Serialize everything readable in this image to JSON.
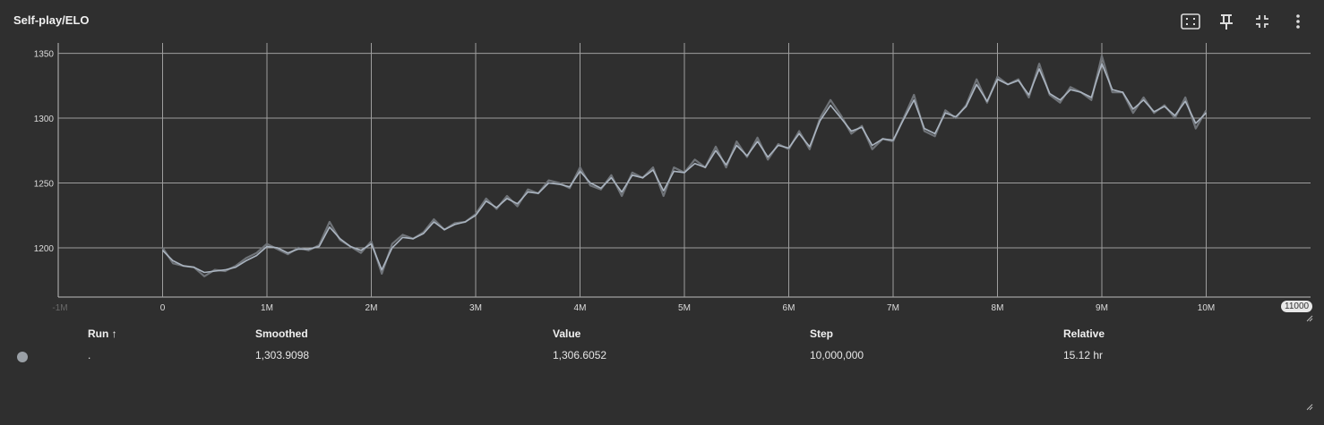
{
  "card": {
    "title": "Self-play/ELO",
    "toolbar": [
      {
        "name": "fit-domain-icon"
      },
      {
        "name": "pin-icon"
      },
      {
        "name": "collapse-icon"
      },
      {
        "name": "more-vert-icon"
      }
    ]
  },
  "chart_data": {
    "type": "line",
    "title": "Self-play/ELO",
    "xlabel": "",
    "ylabel": "",
    "xlim": [
      -1000000,
      11000000
    ],
    "ylim": [
      1162,
      1358
    ],
    "x_ticks": [
      0,
      1000000,
      2000000,
      3000000,
      4000000,
      5000000,
      6000000,
      7000000,
      8000000,
      9000000,
      10000000
    ],
    "x_tick_labels": [
      "0",
      "1M",
      "2M",
      "3M",
      "4M",
      "5M",
      "6M",
      "7M",
      "8M",
      "9M",
      "10M"
    ],
    "x_edge_labels": {
      "left": "-1M",
      "right": "11000"
    },
    "y_ticks": [
      1200,
      1250,
      1300,
      1350
    ],
    "y_tick_labels": [
      "1200",
      "1250",
      "1300",
      "1350"
    ],
    "grid": true,
    "series_colors": {
      "raw": "#6f7378",
      "smoothed": "#aab4c0"
    },
    "series": [
      {
        "name": ".",
        "x": [
          0,
          100000,
          200000,
          300000,
          400000,
          500000,
          600000,
          700000,
          800000,
          900000,
          1000000,
          1100000,
          1200000,
          1300000,
          1400000,
          1500000,
          1600000,
          1700000,
          1800000,
          1900000,
          2000000,
          2100000,
          2200000,
          2300000,
          2400000,
          2500000,
          2600000,
          2700000,
          2800000,
          2900000,
          3000000,
          3100000,
          3200000,
          3300000,
          3400000,
          3500000,
          3600000,
          3700000,
          3800000,
          3900000,
          4000000,
          4100000,
          4200000,
          4300000,
          4400000,
          4500000,
          4600000,
          4700000,
          4800000,
          4900000,
          5000000,
          5100000,
          5200000,
          5300000,
          5400000,
          5500000,
          5600000,
          5700000,
          5800000,
          5900000,
          6000000,
          6100000,
          6200000,
          6300000,
          6400000,
          6500000,
          6600000,
          6700000,
          6800000,
          6900000,
          7000000,
          7100000,
          7200000,
          7300000,
          7400000,
          7500000,
          7600000,
          7700000,
          7800000,
          7900000,
          8000000,
          8100000,
          8200000,
          8300000,
          8400000,
          8500000,
          8600000,
          8700000,
          8800000,
          8900000,
          9000000,
          9100000,
          9200000,
          9300000,
          9400000,
          9500000,
          9600000,
          9700000,
          9800000,
          9900000,
          10000000
        ],
        "raw": [
          1200,
          1188,
          1186,
          1185,
          1178,
          1183,
          1182,
          1186,
          1192,
          1196,
          1203,
          1199,
          1195,
          1200,
          1198,
          1202,
          1220,
          1206,
          1201,
          1196,
          1205,
          1180,
          1203,
          1210,
          1207,
          1212,
          1222,
          1214,
          1219,
          1220,
          1226,
          1238,
          1230,
          1240,
          1232,
          1245,
          1242,
          1252,
          1250,
          1246,
          1262,
          1248,
          1245,
          1256,
          1240,
          1258,
          1254,
          1262,
          1240,
          1262,
          1258,
          1268,
          1262,
          1278,
          1262,
          1282,
          1270,
          1285,
          1268,
          1280,
          1276,
          1290,
          1276,
          1300,
          1314,
          1302,
          1288,
          1294,
          1276,
          1284,
          1282,
          1300,
          1318,
          1290,
          1286,
          1306,
          1300,
          1310,
          1330,
          1312,
          1332,
          1326,
          1330,
          1316,
          1342,
          1318,
          1312,
          1324,
          1320,
          1314,
          1348,
          1320,
          1320,
          1304,
          1316,
          1304,
          1310,
          1300,
          1316,
          1292,
          1306
        ],
        "smoothed": [
          1198,
          1190,
          1186,
          1185,
          1181,
          1182,
          1183,
          1185,
          1190,
          1194,
          1201,
          1200,
          1196,
          1199,
          1199,
          1201,
          1216,
          1207,
          1201,
          1198,
          1203,
          1183,
          1200,
          1208,
          1207,
          1211,
          1220,
          1214,
          1218,
          1220,
          1225,
          1236,
          1231,
          1238,
          1234,
          1243,
          1242,
          1250,
          1249,
          1247,
          1259,
          1250,
          1246,
          1254,
          1243,
          1256,
          1254,
          1260,
          1244,
          1259,
          1258,
          1265,
          1262,
          1275,
          1264,
          1279,
          1271,
          1282,
          1270,
          1279,
          1277,
          1288,
          1278,
          1298,
          1310,
          1300,
          1290,
          1293,
          1279,
          1284,
          1283,
          1299,
          1314,
          1292,
          1288,
          1304,
          1301,
          1309,
          1326,
          1313,
          1330,
          1326,
          1329,
          1318,
          1338,
          1319,
          1314,
          1322,
          1320,
          1316,
          1342,
          1322,
          1320,
          1307,
          1314,
          1305,
          1309,
          1302,
          1313,
          1296,
          1304
        ]
      }
    ]
  },
  "table": {
    "headers": {
      "run": "Run ↑",
      "smoothed": "Smoothed",
      "value": "Value",
      "step": "Step",
      "relative": "Relative"
    },
    "rows": [
      {
        "run": ".",
        "smoothed": "1,303.9098",
        "value": "1,306.6052",
        "step": "10,000,000",
        "relative": "15.12 hr",
        "color": "#9aa0a6"
      }
    ]
  }
}
